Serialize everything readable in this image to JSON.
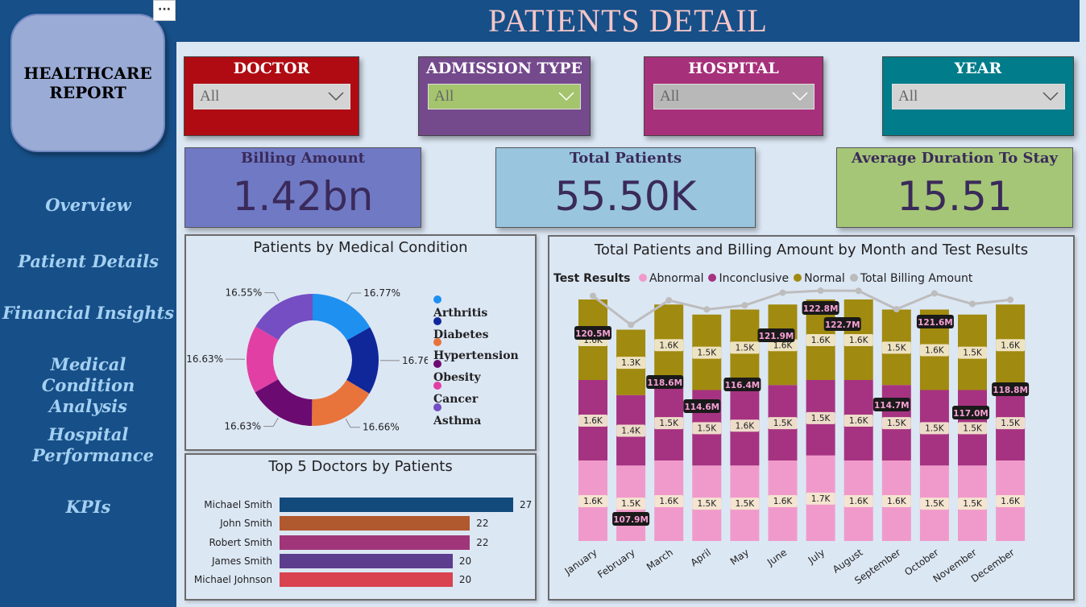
{
  "sidebar": {
    "logo": "HEALTHCARE\nREPORT",
    "more": "···",
    "items": [
      {
        "label": "Overview"
      },
      {
        "label": "Patient Details"
      },
      {
        "label": "Financial Insights"
      },
      {
        "label": "Medical Condition Analysis"
      },
      {
        "label": "Hospital Performance"
      },
      {
        "label": "KPIs"
      }
    ]
  },
  "header": {
    "title": "PATIENTS DETAIL"
  },
  "filters": [
    {
      "label": "DOCTOR",
      "value": "All",
      "color": "#b00b12",
      "box": "#d4d4d4"
    },
    {
      "label": "ADMISSION TYPE",
      "value": "All",
      "color": "#744a8c",
      "box": "#a4c46e"
    },
    {
      "label": "HOSPITAL",
      "value": "All",
      "color": "#a7307a",
      "box": "#b8b8b8"
    },
    {
      "label": "YEAR",
      "value": "All",
      "color": "#017c8a",
      "box": "#d4d4d4"
    }
  ],
  "kpis": [
    {
      "label": "Billing Amount",
      "value": "1.42bn",
      "color": "#7079c4",
      "label_color": "#3a2a5a"
    },
    {
      "label": "Total Patients",
      "value": "55.50K",
      "color": "#99c5df",
      "label_color": "#3a2a5a"
    },
    {
      "label": "Average Duration To Stay",
      "value": "15.51",
      "color": "#a5c677",
      "label_color": "#3a2a5a"
    }
  ],
  "donut": {
    "title": "Patients by Medical Condition",
    "segments": [
      {
        "name": "Arthritis",
        "value": 16.77,
        "label": "16.77%",
        "color": "#1e90f0"
      },
      {
        "name": "Diabetes",
        "value": 16.76,
        "label": "16.76%",
        "color": "#10279a"
      },
      {
        "name": "Hypertension",
        "value": 16.66,
        "label": "16.66%",
        "color": "#e8743b"
      },
      {
        "name": "Obesity",
        "value": 16.63,
        "label": "16.63%",
        "color": "#6b0b72"
      },
      {
        "name": "Cancer",
        "value": 16.63,
        "label": "16.63%",
        "color": "#e23fa4"
      },
      {
        "name": "Asthma",
        "value": 16.55,
        "label": "16.55%",
        "color": "#744ec2"
      }
    ]
  },
  "doctors": {
    "title": "Top 5 Doctors by Patients",
    "items": [
      {
        "name": "Michael Smith",
        "value": 27,
        "color": "#134a7c"
      },
      {
        "name": "John Smith",
        "value": 22,
        "color": "#b0582e"
      },
      {
        "name": "Robert Smith",
        "value": 22,
        "color": "#a03679"
      },
      {
        "name": "James Smith",
        "value": 20,
        "color": "#5c3d8e"
      },
      {
        "name": "Michael Johnson",
        "value": 20,
        "color": "#d8434f"
      }
    ],
    "max": 27
  },
  "chart_data": {
    "type": "bar",
    "title": "Total Patients and Billing Amount by Month and Test Results",
    "legend_title": "Test Results",
    "legend": [
      {
        "name": "Abnormal",
        "color": "#f09acb"
      },
      {
        "name": "Inconclusive",
        "color": "#a63381"
      },
      {
        "name": "Normal",
        "color": "#a08a0f"
      },
      {
        "name": "Total Billing Amount",
        "color": "#bbbbbb"
      }
    ],
    "categories": [
      "January",
      "February",
      "March",
      "April",
      "May",
      "June",
      "July",
      "August",
      "September",
      "October",
      "November",
      "December"
    ],
    "series": [
      {
        "name": "Abnormal",
        "values": [
          1.6,
          1.5,
          1.6,
          1.5,
          1.5,
          1.6,
          1.7,
          1.6,
          1.6,
          1.5,
          1.5,
          1.6
        ],
        "labels": [
          "1.6K",
          "1.5K",
          "1.6K",
          "1.5K",
          "1.5K",
          "1.6K",
          "1.7K",
          "1.6K",
          "1.6K",
          "1.5K",
          "1.5K",
          "1.6K"
        ]
      },
      {
        "name": "Inconclusive",
        "values": [
          1.6,
          1.4,
          1.5,
          1.5,
          1.6,
          1.5,
          1.5,
          1.6,
          1.5,
          1.5,
          1.5,
          1.5
        ],
        "labels": [
          "1.6K",
          "1.4K",
          "1.5K",
          "1.5K",
          "1.6K",
          "1.5K",
          "1.5K",
          "1.6K",
          "1.5K",
          "1.5K",
          "1.5K",
          "1.5K"
        ]
      },
      {
        "name": "Normal",
        "values": [
          1.6,
          1.3,
          1.6,
          1.5,
          1.5,
          1.6,
          1.6,
          1.6,
          1.5,
          1.6,
          1.5,
          1.6
        ],
        "labels": [
          "1.6K",
          "1.3K",
          "1.6K",
          "1.5K",
          "1.5K",
          "1.6K",
          "1.6K",
          "1.6K",
          "1.5K",
          "1.6K",
          "1.5K",
          "1.6K"
        ]
      }
    ],
    "line": {
      "name": "Total Billing Amount",
      "values": [
        120.5,
        107.9,
        118.6,
        114.6,
        116.4,
        121.9,
        122.8,
        122.7,
        114.7,
        121.6,
        117.0,
        118.8
      ],
      "labels": [
        "120.5M",
        "107.9M",
        "118.6M",
        "114.6M",
        "116.4M",
        "121.9M",
        "122.8M",
        "122.7M",
        "114.7M",
        "121.6M",
        "117.0M",
        "118.8M"
      ]
    }
  }
}
